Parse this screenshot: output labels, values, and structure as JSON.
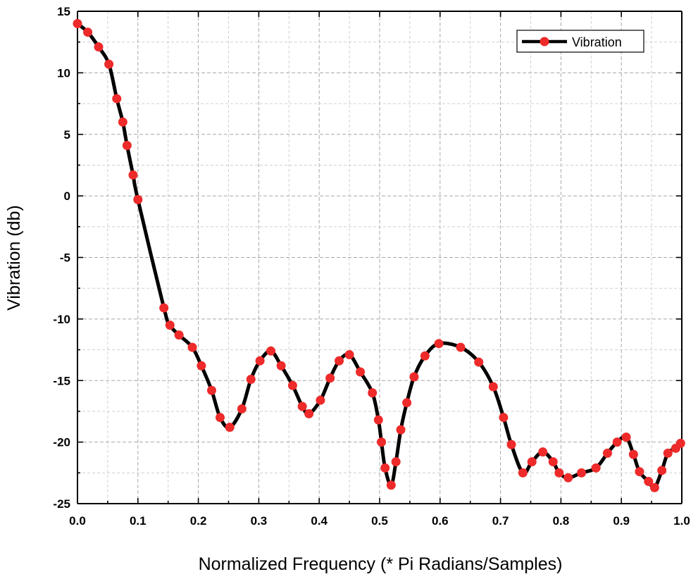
{
  "chart_data": {
    "type": "line",
    "title": "",
    "xlabel": "Normalized Frequency (* Pi Radians/Samples)",
    "ylabel": "Vibration (db)",
    "xlim": [
      0,
      1
    ],
    "ylim": [
      -25,
      15
    ],
    "x_ticks": [
      0.0,
      0.1,
      0.2,
      0.3,
      0.4,
      0.5,
      0.6,
      0.7,
      0.8,
      0.9,
      1.0
    ],
    "x_tick_labels": [
      "0.0",
      "0.1",
      "0.2",
      "0.3",
      "0.4",
      "0.5",
      "0.6",
      "0.7",
      "0.8",
      "0.9",
      "1.0"
    ],
    "y_ticks": [
      -25,
      -20,
      -15,
      -10,
      -5,
      0,
      5,
      10,
      15
    ],
    "y_tick_labels": [
      "-25",
      "-20",
      "-15",
      "-10",
      "-5",
      "0",
      "5",
      "10",
      "15"
    ],
    "grid": true,
    "legend": {
      "position": "top-right",
      "entries": [
        "Vibration"
      ]
    },
    "colors": {
      "line": "#000000",
      "marker": "#ee2a2a"
    },
    "series": [
      {
        "name": "Vibration",
        "x": [
          0.0,
          0.017,
          0.035,
          0.052,
          0.065,
          0.075,
          0.082,
          0.092,
          0.1,
          0.143,
          0.153,
          0.168,
          0.19,
          0.205,
          0.222,
          0.236,
          0.252,
          0.272,
          0.287,
          0.302,
          0.32,
          0.337,
          0.356,
          0.372,
          0.383,
          0.402,
          0.418,
          0.433,
          0.45,
          0.468,
          0.488,
          0.498,
          0.503,
          0.509,
          0.519,
          0.527,
          0.535,
          0.545,
          0.557,
          0.575,
          0.598,
          0.634,
          0.664,
          0.688,
          0.705,
          0.718,
          0.737,
          0.752,
          0.77,
          0.787,
          0.797,
          0.812,
          0.834,
          0.858,
          0.877,
          0.893,
          0.908,
          0.92,
          0.93,
          0.945,
          0.955,
          0.967,
          0.977,
          0.99,
          0.998
        ],
        "values": [
          14.0,
          13.3,
          12.1,
          10.7,
          7.9,
          6.0,
          4.1,
          1.7,
          -0.3,
          -9.1,
          -10.5,
          -11.3,
          -12.3,
          -13.8,
          -15.8,
          -18.0,
          -18.8,
          -17.3,
          -14.9,
          -13.4,
          -12.6,
          -13.8,
          -15.4,
          -17.1,
          -17.7,
          -16.6,
          -14.8,
          -13.4,
          -12.9,
          -14.3,
          -16.0,
          -18.2,
          -20.0,
          -22.1,
          -23.5,
          -21.6,
          -19.0,
          -16.8,
          -14.7,
          -13.0,
          -12.0,
          -12.3,
          -13.5,
          -15.5,
          -18.0,
          -20.2,
          -22.5,
          -21.6,
          -20.8,
          -21.6,
          -22.5,
          -22.9,
          -22.5,
          -22.1,
          -20.9,
          -20.0,
          -19.6,
          -21.0,
          -22.4,
          -23.2,
          -23.7,
          -22.3,
          -20.9,
          -20.5,
          -20.1
        ]
      }
    ]
  }
}
